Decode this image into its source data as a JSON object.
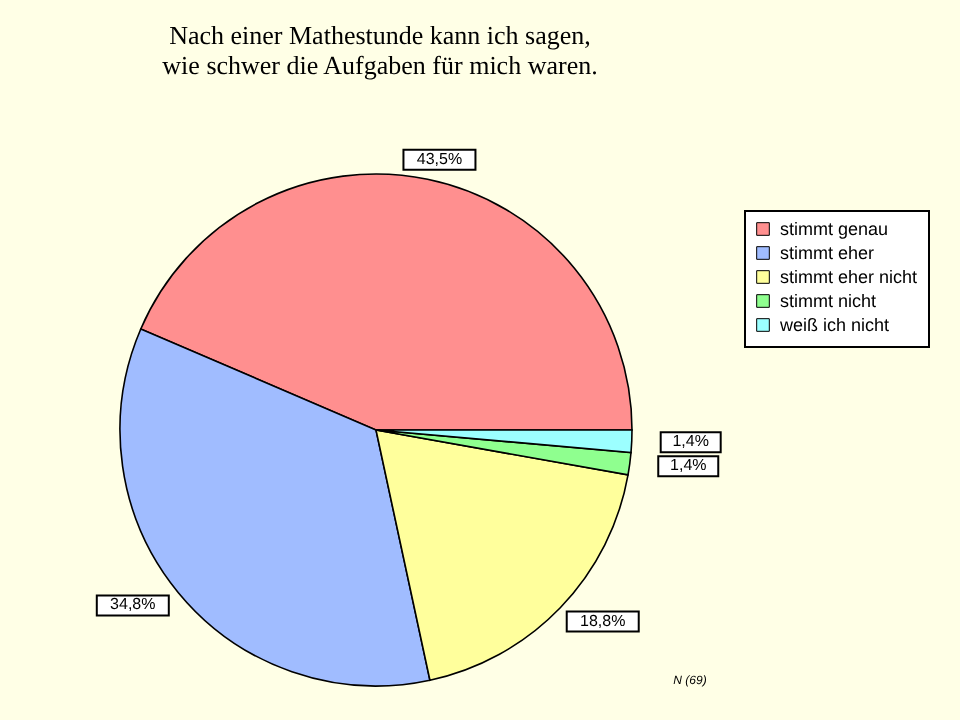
{
  "chart_data": {
    "type": "pie",
    "title": [
      "Nach einer Mathestunde kann ich sagen,",
      "wie schwer die Aufgaben für mich waren."
    ],
    "categories": [
      "stimmt genau",
      "stimmt eher",
      "stimmt eher nicht",
      "stimmt nicht",
      "weiß ich nicht"
    ],
    "values": [
      43.5,
      34.8,
      18.8,
      1.4,
      1.4
    ],
    "value_labels": [
      "43,5%",
      "34,8%",
      "18,8%",
      "1,4%",
      "1,4%"
    ],
    "colors": [
      "#ff8f8f",
      "#a0bcff",
      "#ffff9c",
      "#8fff8f",
      "#9cffff"
    ],
    "legend": "right",
    "annotations": [
      "N (69)"
    ]
  }
}
